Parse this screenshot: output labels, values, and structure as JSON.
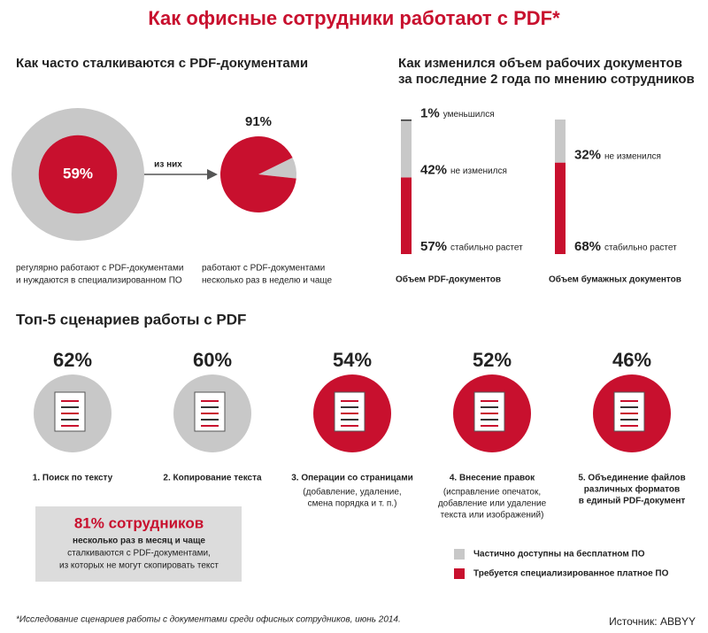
{
  "title": "Как офисные сотрудники работают с PDF*",
  "frequency": {
    "title": "Как часто сталкиваются с PDF-документами",
    "connector": "из них",
    "values": [
      59,
      91
    ],
    "value_labels": [
      "59%",
      "91%"
    ],
    "captions": [
      [
        "регулярно работают с PDF-документами",
        "и нуждаются в специализированном ПО"
      ],
      [
        "работают с PDF-документами",
        "несколько раз в неделю и чаще"
      ]
    ]
  },
  "volume": {
    "title": [
      "Как изменился объем рабочих документов",
      "за последние 2 года по мнению сотрудников"
    ],
    "charts": [
      {
        "name": "Объем PDF-документов",
        "categories": [
          "уменьшился",
          "не изменился",
          "стабильно растет"
        ],
        "values": [
          1,
          42,
          57
        ],
        "value_labels": [
          "1%",
          "42%",
          "57%"
        ],
        "colors": [
          "#333333",
          "#c8c8c8",
          "#c8102e"
        ]
      },
      {
        "name": "Объем бумажных документов",
        "categories": [
          "не изменился",
          "стабильно растет"
        ],
        "values": [
          32,
          68
        ],
        "value_labels": [
          "32%",
          "68%"
        ],
        "colors": [
          "#c8c8c8",
          "#c8102e"
        ]
      }
    ]
  },
  "scenarios": {
    "title": "Топ-5 сценариев работы с PDF",
    "items": [
      {
        "percent": "62%",
        "label": [
          "1. Поиск по тексту"
        ],
        "note": [],
        "color": "#c8c8c8"
      },
      {
        "percent": "60%",
        "label": [
          "2. Копирование текста"
        ],
        "note": [],
        "color": "#c8c8c8"
      },
      {
        "percent": "54%",
        "label": [
          "3. Операции со страницами"
        ],
        "note": [
          "(добавление, удаление,",
          "смена порядка и т. п.)"
        ],
        "color": "#c8102e"
      },
      {
        "percent": "52%",
        "label": [
          "4. Внесение правок"
        ],
        "note": [
          "(исправление опечаток,",
          "добавление или удаление",
          "текста или изображений)"
        ],
        "color": "#c8102e"
      },
      {
        "percent": "46%",
        "label": [
          "5. Объединение файлов",
          "различных форматов",
          "в единый PDF-документ"
        ],
        "note": [],
        "color": "#c8102e"
      }
    ]
  },
  "callout": {
    "headline": "81% сотрудников",
    "lines": [
      "несколько раз в месяц и чаще",
      "сталкиваются с PDF-документами,",
      "из которых не могут скопировать текст"
    ]
  },
  "legend": [
    {
      "label": "Частично доступны на бесплатном ПО",
      "color": "#c8c8c8"
    },
    {
      "label": "Требуется специализированное платное ПО",
      "color": "#c8102e"
    }
  ],
  "footnote": "*Исследование сценариев работы с документами среди офисных сотрудников, июнь 2014.",
  "source": "Источник: ABBYY"
}
